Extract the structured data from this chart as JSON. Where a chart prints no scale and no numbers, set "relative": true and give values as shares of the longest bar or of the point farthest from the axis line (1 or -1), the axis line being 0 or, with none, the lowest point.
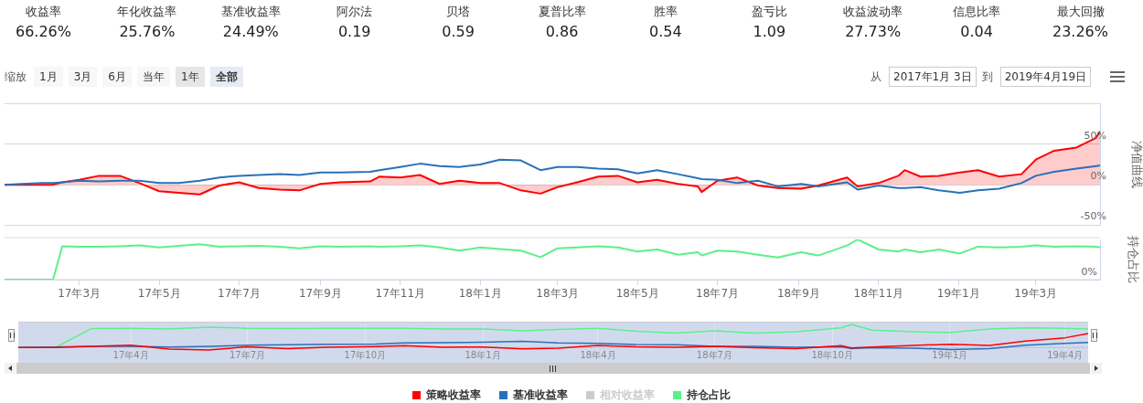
{
  "chart_data": [
    {
      "type": "other",
      "annotations": [
        "收益率",
        "66.26%",
        "年化收益率",
        "25.76%",
        "基准收益率",
        "24.49%",
        "阿尔法",
        "0.19",
        "贝塔",
        "0.59",
        "夏普比率",
        "0.86",
        "胜率",
        "0.54",
        "盈亏比",
        "1.09",
        "收益波动率",
        "27.73%",
        "信息比率",
        "0.04",
        "最大回撤",
        "23.26%"
      ]
    },
    {
      "type": "other",
      "annotations": [
        "缩放",
        "1月",
        "3月",
        "6月",
        "当年",
        "1年",
        "全部",
        "从",
        "2017年1月 3日",
        "到",
        "2019年4月19日"
      ]
    },
    {
      "type": "line",
      "ylabel": "净值曲线",
      "marker": "none",
      "grid": "y",
      "tick_labels": "y",
      "legend": "bottom",
      "x": [
        "2017-01-03",
        "2017-01-16",
        "2017-02-01",
        "2017-02-09",
        "2017-02-16",
        "2017-03-01",
        "2017-03-16",
        "2017-04-01",
        "2017-04-16",
        "2017-05-01",
        "2017-05-16",
        "2017-06-01",
        "2017-06-16",
        "2017-07-01",
        "2017-07-16",
        "2017-08-01",
        "2017-08-16",
        "2017-09-01",
        "2017-09-16",
        "2017-10-09",
        "2017-10-16",
        "2017-11-01",
        "2017-11-16",
        "2017-12-01",
        "2017-12-16",
        "2018-01-01",
        "2018-01-16",
        "2018-02-01",
        "2018-02-16",
        "2018-03-01",
        "2018-03-16",
        "2018-04-01",
        "2018-04-16",
        "2018-05-01",
        "2018-05-16",
        "2018-06-01",
        "2018-06-16",
        "2018-06-19",
        "2018-07-01",
        "2018-07-16",
        "2018-08-01",
        "2018-08-16",
        "2018-09-03",
        "2018-09-16",
        "2018-10-08",
        "2018-10-16",
        "2018-11-01",
        "2018-11-16",
        "2018-11-21",
        "2018-12-03",
        "2018-12-17",
        "2019-01-02",
        "2019-01-16",
        "2019-02-01",
        "2019-02-18",
        "2019-03-01",
        "2019-03-15",
        "2019-04-01",
        "2019-04-16",
        "2019-04-19"
      ],
      "xlim": [
        "2017-01-03",
        "2019-04-19"
      ],
      "ylim": [
        -50,
        100
      ],
      "yticks": [
        {
          "value": -50,
          "label": "-50%"
        },
        {
          "value": 0,
          "label": "0%"
        },
        {
          "value": 50,
          "label": "50%"
        },
        {
          "value": 100,
          "label": null
        }
      ],
      "series": [
        {
          "name": "策略收益率",
          "type": "area",
          "color": "#ff0000",
          "values": [
            0,
            0,
            0,
            0,
            3,
            6,
            11,
            11,
            2,
            -8,
            -10,
            -12,
            -1,
            3,
            -4,
            -6,
            -7,
            1,
            3,
            4,
            10,
            9,
            12,
            1,
            5,
            2,
            2,
            -7,
            -11,
            -3,
            3,
            10,
            11,
            3,
            6,
            1,
            -2,
            -9,
            5,
            9,
            -1,
            -4,
            -5,
            -1,
            9,
            -2,
            2,
            11,
            18,
            10,
            11,
            15,
            18,
            10,
            13,
            31,
            42,
            46,
            58,
            66
          ]
        },
        {
          "name": "基准收益率",
          "color": "#2a70b8",
          "values": [
            0,
            1,
            2,
            2,
            3,
            5,
            4,
            5,
            5,
            2,
            2,
            5,
            9,
            11,
            12,
            13,
            12,
            15,
            15,
            16,
            18,
            22,
            26,
            23,
            22,
            25,
            31,
            30,
            18,
            22,
            22,
            20,
            19,
            14,
            18,
            13,
            8,
            7,
            6,
            2,
            5,
            -2,
            1,
            -2,
            3,
            -6,
            -1,
            -4,
            -4,
            -3,
            -7,
            -10,
            -7,
            -5,
            2,
            11,
            16,
            20,
            23,
            24
          ]
        },
        {
          "name": "相对收益率",
          "color": "#cccccc",
          "values": [
            null,
            null,
            null,
            null,
            null,
            null,
            null,
            null,
            null,
            null,
            null,
            null,
            null,
            null,
            null,
            null,
            null,
            null,
            null,
            null,
            null,
            null,
            null,
            null,
            null,
            null,
            null,
            null,
            null,
            null,
            null,
            null,
            null,
            null,
            null,
            null,
            null,
            null,
            null,
            null,
            null,
            null,
            null,
            null,
            null,
            null,
            null,
            null,
            null,
            null,
            null,
            null,
            null,
            null,
            null,
            null,
            null,
            null,
            null,
            null
          ]
        }
      ]
    },
    {
      "type": "line",
      "ylabel": "持仓占比",
      "relative": true,
      "marker": "none",
      "tick_labels": "x",
      "annotations": [
        "0%"
      ],
      "x": [
        "2017-01-03",
        "2017-01-16",
        "2017-02-01",
        "2017-02-09",
        "2017-02-16",
        "2017-03-01",
        "2017-03-16",
        "2017-04-01",
        "2017-04-16",
        "2017-05-01",
        "2017-05-16",
        "2017-06-01",
        "2017-06-16",
        "2017-07-01",
        "2017-07-16",
        "2017-08-01",
        "2017-08-16",
        "2017-09-01",
        "2017-09-16",
        "2017-10-09",
        "2017-10-16",
        "2017-11-01",
        "2017-11-16",
        "2017-12-01",
        "2017-12-16",
        "2018-01-01",
        "2018-01-16",
        "2018-02-01",
        "2018-02-16",
        "2018-03-01",
        "2018-03-16",
        "2018-04-01",
        "2018-04-16",
        "2018-05-01",
        "2018-05-16",
        "2018-06-01",
        "2018-06-16",
        "2018-06-19",
        "2018-07-01",
        "2018-07-16",
        "2018-08-01",
        "2018-08-16",
        "2018-09-03",
        "2018-09-16",
        "2018-10-08",
        "2018-10-16",
        "2018-11-01",
        "2018-11-16",
        "2018-11-21",
        "2018-12-03",
        "2018-12-17",
        "2019-01-02",
        "2019-01-16",
        "2019-02-01",
        "2019-02-18",
        "2019-03-01",
        "2019-03-15",
        "2019-04-01",
        "2019-04-16",
        "2019-04-19"
      ],
      "xlim": [
        "2017-01-03",
        "2019-04-19"
      ],
      "xticks": [
        {
          "value": "2017-03-01",
          "label": "17年3月"
        },
        {
          "value": "2017-05-01",
          "label": "17年5月"
        },
        {
          "value": "2017-07-01",
          "label": "17年7月"
        },
        {
          "value": "2017-09-01",
          "label": "17年9月"
        },
        {
          "value": "2017-11-01",
          "label": "17年11月"
        },
        {
          "value": "2018-01-01",
          "label": "18年1月"
        },
        {
          "value": "2018-03-01",
          "label": "18年3月"
        },
        {
          "value": "2018-05-01",
          "label": "18年5月"
        },
        {
          "value": "2018-07-01",
          "label": "18年7月"
        },
        {
          "value": "2018-09-01",
          "label": "18年9月"
        },
        {
          "value": "2018-11-01",
          "label": "18年11月"
        },
        {
          "value": "2019-01-01",
          "label": "19年1月"
        },
        {
          "value": "2019-03-01",
          "label": "19年3月"
        }
      ],
      "series": [
        {
          "name": "持仓占比",
          "color": "#5cf08a",
          "values": [
            0,
            0,
            0,
            0,
            0.83,
            0.82,
            0.82,
            0.83,
            0.85,
            0.8,
            0.84,
            0.88,
            0.82,
            0.83,
            0.84,
            0.82,
            0.78,
            0.83,
            0.82,
            0.83,
            0.82,
            0.83,
            0.85,
            0.8,
            0.72,
            0.8,
            0.76,
            0.72,
            0.56,
            0.78,
            0.8,
            0.83,
            0.8,
            0.7,
            0.75,
            0.62,
            0.68,
            0.6,
            0.72,
            0.7,
            0.62,
            0.55,
            0.68,
            0.6,
            0.85,
            1,
            0.75,
            0.7,
            0.75,
            0.68,
            0.75,
            0.65,
            0.82,
            0.8,
            0.82,
            0.85,
            0.82,
            0.83,
            0.82,
            0.8
          ]
        }
      ]
    },
    {
      "type": "line",
      "relative": true,
      "marker": "none",
      "tick_labels": "x",
      "grid": "x",
      "x": [
        "2017-01-03",
        "2017-02-01",
        "2017-03-01",
        "2017-04-01",
        "2017-05-01",
        "2017-06-01",
        "2017-07-01",
        "2017-08-01",
        "2017-09-01",
        "2017-10-09",
        "2017-11-01",
        "2017-12-01",
        "2018-01-01",
        "2018-02-01",
        "2018-03-01",
        "2018-04-01",
        "2018-05-01",
        "2018-06-01",
        "2018-07-01",
        "2018-08-01",
        "2018-09-03",
        "2018-10-08",
        "2018-10-16",
        "2018-11-01",
        "2018-12-03",
        "2019-01-02",
        "2019-02-01",
        "2019-03-01",
        "2019-04-01",
        "2019-04-19"
      ],
      "xlim": [
        "2017-01-03",
        "2019-04-19"
      ],
      "xticks": [
        {
          "value": "2017-04-01",
          "label": "17年4月"
        },
        {
          "value": "2017-07-01",
          "label": "17年7月"
        },
        {
          "value": "2017-10-01",
          "label": "17年10月"
        },
        {
          "value": "2018-01-01",
          "label": "18年1月"
        },
        {
          "value": "2018-04-01",
          "label": "18年4月"
        },
        {
          "value": "2018-07-01",
          "label": "18年7月"
        },
        {
          "value": "2018-10-01",
          "label": "18年10月"
        },
        {
          "value": "2019-01-01",
          "label": "19年1月"
        },
        {
          "value": "2019-04-01",
          "label": "19年4月"
        }
      ],
      "series": [
        {
          "color": "#ff0000",
          "values": [
            0,
            0,
            0.05,
            0.1,
            -0.07,
            -0.11,
            0.03,
            -0.05,
            0.01,
            0.04,
            0.08,
            0.01,
            0.02,
            -0.06,
            -0.03,
            0.09,
            0.03,
            0.01,
            0.05,
            -0.01,
            -0.05,
            0.08,
            -0.02,
            0.02,
            0.09,
            0.14,
            0.09,
            0.28,
            0.42,
            0.6
          ]
        },
        {
          "color": "#2a70b8",
          "values": [
            0,
            0.02,
            0.05,
            0.05,
            0.02,
            0.05,
            0.1,
            0.12,
            0.14,
            0.15,
            0.2,
            0.21,
            0.23,
            0.27,
            0.2,
            0.18,
            0.13,
            0.12,
            0.05,
            0.05,
            0.01,
            0.03,
            -0.05,
            -0.01,
            -0.03,
            -0.09,
            -0.05,
            0.1,
            0.18,
            0.22
          ]
        },
        {
          "color": "#5cf08a",
          "values": [
            0,
            0,
            0.82,
            0.83,
            0.8,
            0.88,
            0.83,
            0.82,
            0.83,
            0.83,
            0.83,
            0.8,
            0.8,
            0.72,
            0.78,
            0.83,
            0.7,
            0.62,
            0.72,
            0.62,
            0.68,
            0.85,
            1,
            0.75,
            0.68,
            0.65,
            0.8,
            0.85,
            0.83,
            0.8
          ]
        }
      ]
    }
  ]
}
